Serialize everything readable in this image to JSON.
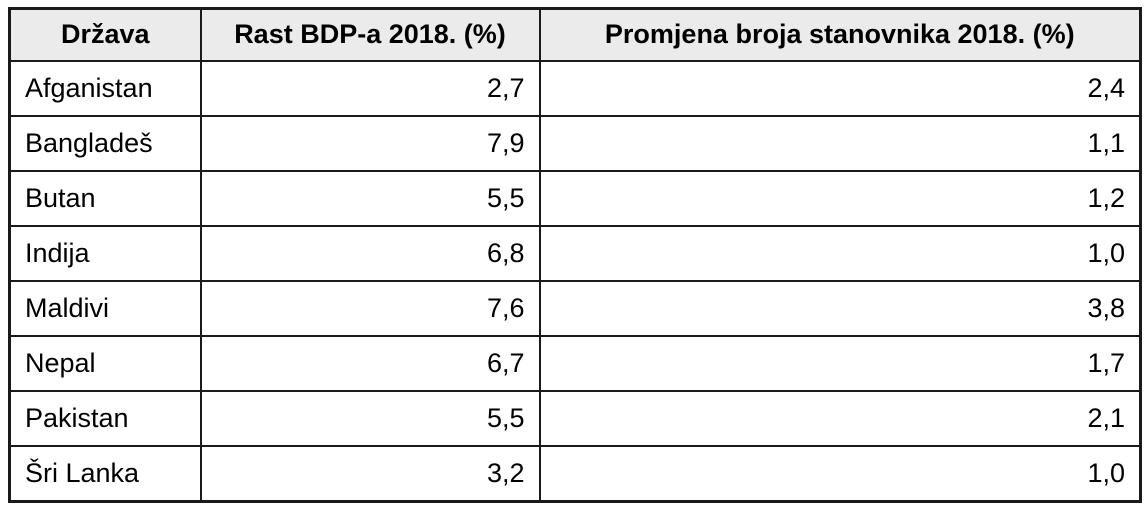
{
  "table": {
    "columns": {
      "country": "Država",
      "gdp": "Rast BDP-a 2018. (%)",
      "pop": "Promjena broja stanovnika 2018. (%)"
    },
    "rows": [
      {
        "country": "Afganistan",
        "gdp": "2,7",
        "pop": "2,4"
      },
      {
        "country": "Bangladeš",
        "gdp": "7,9",
        "pop": "1,1"
      },
      {
        "country": "Butan",
        "gdp": "5,5",
        "pop": "1,2"
      },
      {
        "country": "Indija",
        "gdp": "6,8",
        "pop": "1,0"
      },
      {
        "country": "Maldivi",
        "gdp": "7,6",
        "pop": "3,8"
      },
      {
        "country": "Nepal",
        "gdp": "6,7",
        "pop": "1,7"
      },
      {
        "country": "Pakistan",
        "gdp": "5,5",
        "pop": "2,1"
      },
      {
        "country": "Šri Lanka",
        "gdp": "3,2",
        "pop": "1,0"
      }
    ]
  },
  "chart_data": {
    "type": "table",
    "columns": [
      "Država",
      "Rast BDP-a 2018. (%)",
      "Promjena broja stanovnika 2018. (%)"
    ],
    "rows": [
      [
        "Afganistan",
        2.7,
        2.4
      ],
      [
        "Bangladeš",
        7.9,
        1.1
      ],
      [
        "Butan",
        5.5,
        1.2
      ],
      [
        "Indija",
        6.8,
        1.0
      ],
      [
        "Maldivi",
        7.6,
        3.8
      ],
      [
        "Nepal",
        6.7,
        1.7
      ],
      [
        "Pakistan",
        5.5,
        2.1
      ],
      [
        "Šri Lanka",
        3.2,
        1.0
      ]
    ],
    "title": "",
    "number_format": "decimal-comma"
  },
  "colors": {
    "header_bg": "#ebebeb",
    "border": "#1a1a1a",
    "text": "#000000",
    "background": "#ffffff"
  }
}
